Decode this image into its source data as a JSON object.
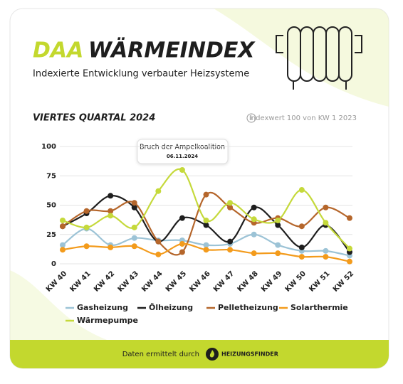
{
  "brand": "DAA",
  "subtitle": "Indexierte Entwicklung verbauter Heizsysteme",
  "section_title": "VIERTES QUARTAL 2024",
  "note": "Indexwert 100 von KW 1 2023",
  "footer": {
    "text": "Daten ermittelt durch",
    "brand": "HEIZUNGSFINDER"
  },
  "chart_data": {
    "type": "line",
    "title": "WÄRMEINDEX",
    "annotation": {
      "text": "Bruch der Ampelkoalition",
      "date": "06.11.2024"
    },
    "categories": [
      "KW 40",
      "KW 41",
      "KW 42",
      "KW 43",
      "KW 44",
      "KW 45",
      "KW 46",
      "KW 47",
      "KW 48",
      "KW 49",
      "KW 50",
      "KW 51",
      "KW 52"
    ],
    "ylim": [
      0,
      100
    ],
    "yticks": [
      0,
      25,
      50,
      75,
      100
    ],
    "grid": true,
    "legend": "bottom",
    "series": [
      {
        "name": "Gasheizung",
        "color": "#9cc3d6",
        "values": [
          16,
          30,
          16,
          22,
          20,
          20,
          16,
          17,
          25,
          16,
          11,
          11,
          7
        ]
      },
      {
        "name": "Ölheizung",
        "color": "#1e1e1e",
        "values": [
          32,
          43,
          58,
          48,
          19,
          39,
          33,
          19,
          48,
          33,
          14,
          33,
          10
        ]
      },
      {
        "name": "Pelletheizung",
        "color": "#b5662b",
        "values": [
          32,
          45,
          45,
          52,
          19,
          10,
          59,
          48,
          35,
          39,
          32,
          48,
          39
        ]
      },
      {
        "name": "Solarthermie",
        "color": "#f39b1c",
        "values": [
          12,
          15,
          14,
          15,
          8,
          17,
          12,
          12,
          9,
          9,
          6,
          6,
          2
        ]
      },
      {
        "name": "Wärmepumpe",
        "color": "#c5d93b",
        "values": [
          37,
          31,
          41,
          31,
          62,
          80,
          37,
          52,
          38,
          37,
          63,
          35,
          13
        ]
      }
    ]
  }
}
